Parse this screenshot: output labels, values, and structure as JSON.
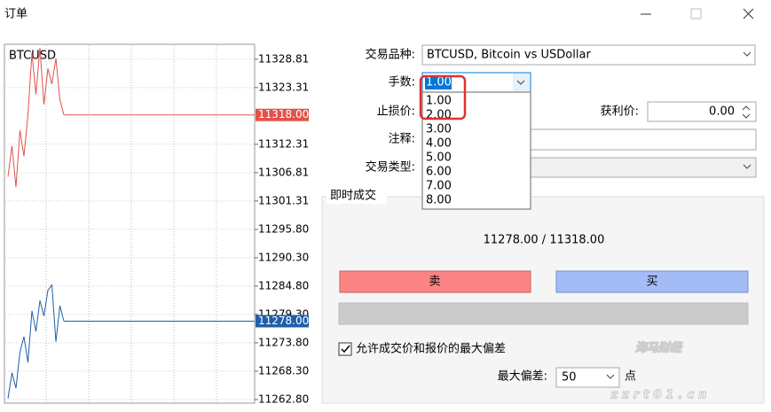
{
  "window": {
    "title": "订单"
  },
  "price_chart": {
    "symbol": "BTCUSD",
    "ylim": [
      11262.1,
      11331.7
    ],
    "yticks": [
      11328.81,
      11323.31,
      11312.31,
      11306.81,
      11301.31,
      {
        "value": 11295.8,
        "label": "11295.80"
      },
      {
        "value": 11290.3,
        "label": "11290.30"
      },
      {
        "value": 11284.8,
        "label": "11284.80"
      },
      {
        "value": 11279.3,
        "label": "11279.30"
      },
      {
        "value": 11273.8,
        "label": "11273.80"
      },
      {
        "value": 11268.3,
        "label": "11268.30"
      },
      {
        "value": 11262.8,
        "label": "11262.80"
      }
    ],
    "series": [
      {
        "color": "#e0534a",
        "values": [
          11306,
          11312,
          11304,
          11315,
          11310,
          11318,
          11330,
          11322,
          11331,
          11320,
          11327,
          11324,
          11329,
          11321,
          11318
        ],
        "value_labels": [
          null,
          null,
          null,
          null,
          null,
          null,
          null,
          null,
          null,
          null,
          null,
          null,
          null,
          null,
          "11318.00"
        ]
      },
      {
        "color": "#1f5fa8",
        "values": [
          11263,
          11268,
          11265,
          11272,
          11275,
          11270,
          11280,
          11276,
          11282,
          11279,
          11284,
          11285,
          11274,
          11281,
          11278
        ],
        "value_labels": [
          null,
          null,
          null,
          null,
          null,
          null,
          null,
          null,
          null,
          null,
          null,
          null,
          null,
          null,
          "11278.00"
        ]
      }
    ]
  },
  "form": {
    "symbol_label": "交易品种:",
    "symbol_value": "BTCUSD, Bitcoin vs USDollar",
    "volume_label": "手数:",
    "volume_value": "1.00",
    "volume_options": [
      "1.00",
      "2.00",
      "3.00",
      "4.00",
      "5.00",
      "6.00",
      "7.00",
      "8.00"
    ],
    "stop_loss_label": "止损价:",
    "take_profit_label": "获利价:",
    "take_profit_value": "0.00",
    "comment_label": "注释:",
    "order_type_label": "交易类型:"
  },
  "instant": {
    "title": "即时成交",
    "prices": "11278.00 / 11318.00",
    "sell": "卖",
    "buy": "买",
    "checkbox_label": "允许成交价和报价的最大偏差",
    "deviation_label": "最大偏差:",
    "deviation_value": "50",
    "deviation_unit": "点"
  },
  "watermark": {
    "name": "海马财经",
    "site": "zzrt01.cn"
  }
}
